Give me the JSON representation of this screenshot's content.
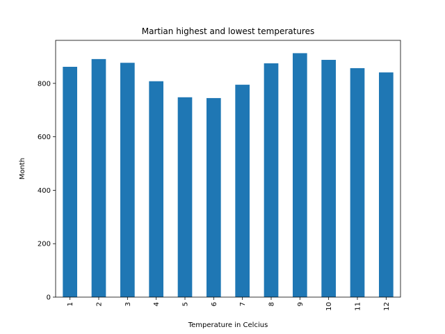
{
  "chart_data": {
    "type": "bar",
    "title": "Martian highest and lowest temperatures",
    "xlabel": "Temperature in Celcius",
    "ylabel": "Month",
    "categories": [
      "1",
      "2",
      "3",
      "4",
      "5",
      "6",
      "7",
      "8",
      "9",
      "10",
      "11",
      "12"
    ],
    "values": [
      862,
      891,
      877,
      808,
      748,
      745,
      795,
      875,
      913,
      888,
      857,
      841
    ],
    "ylim": [
      0,
      961
    ],
    "yticks": [
      0,
      200,
      400,
      600,
      800
    ],
    "bar_color": "#1f77b4",
    "grid": false,
    "legend": "none"
  }
}
